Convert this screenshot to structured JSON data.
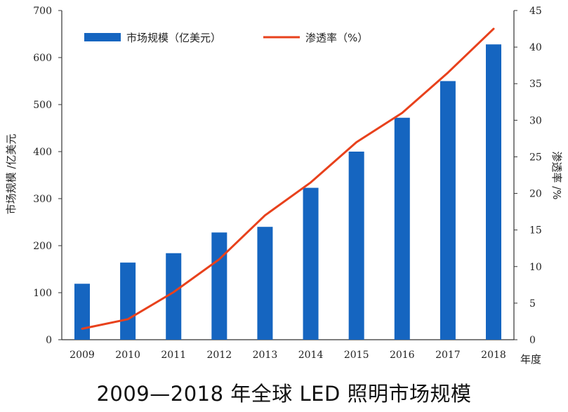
{
  "chart_data": {
    "type": "bar",
    "title": "2009—2018 年全球 LED 照明市场规模",
    "xlabel": "年度",
    "ylabel": "市场规模 /亿美元",
    "y2label": "渗透率 /%",
    "categories": [
      "2009",
      "2010",
      "2011",
      "2012",
      "2013",
      "2014",
      "2015",
      "2016",
      "2017",
      "2018"
    ],
    "series": [
      {
        "name": "市场规模（亿美元）",
        "type": "bar",
        "axis": "left",
        "color": "#1565c0",
        "values": [
          119,
          164,
          184,
          228,
          240,
          323,
          400,
          472,
          550,
          628
        ]
      },
      {
        "name": "渗透率（%）",
        "type": "line",
        "axis": "right",
        "color": "#e8411c",
        "values": [
          1.5,
          2.8,
          6.5,
          11.0,
          17.0,
          21.5,
          27.0,
          31.0,
          36.5,
          42.5
        ]
      }
    ],
    "ylim": [
      0,
      700
    ],
    "yticks": [
      "0",
      "100",
      "200",
      "300",
      "400",
      "500",
      "600",
      "700"
    ],
    "y2lim": [
      0,
      45
    ],
    "y2ticks": [
      "0",
      "5",
      "10",
      "15",
      "20",
      "25",
      "30",
      "35",
      "40",
      "45"
    ],
    "legend": "top",
    "grid": false
  }
}
